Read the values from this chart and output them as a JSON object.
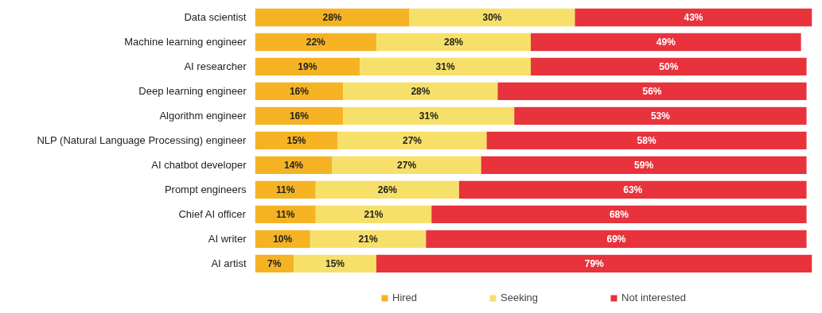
{
  "chart_data": {
    "type": "bar",
    "orientation": "horizontal",
    "stacked": true,
    "legend": "bottom",
    "categories": [
      "Data scientist",
      "Machine learning engineer",
      "AI researcher",
      "Deep learning engineer",
      "Algorithm engineer",
      "NLP (Natural Language Processing) engineer",
      "AI chatbot developer",
      "Prompt engineers",
      "Chief AI officer",
      "AI writer",
      "AI artist"
    ],
    "series": [
      {
        "name": "Hired",
        "color": "#f5b324",
        "values": [
          28,
          22,
          19,
          16,
          16,
          15,
          14,
          11,
          11,
          10,
          7
        ],
        "value_labels": [
          "28%",
          "22%",
          "19%",
          "16%",
          "16%",
          "15%",
          "14%",
          "11%",
          "11%",
          "10%",
          "7%"
        ]
      },
      {
        "name": "Seeking",
        "color": "#f7e06a",
        "values": [
          30,
          28,
          31,
          28,
          31,
          27,
          27,
          26,
          21,
          21,
          15
        ],
        "value_labels": [
          "30%",
          "28%",
          "31%",
          "28%",
          "31%",
          "27%",
          "27%",
          "26%",
          "21%",
          "21%",
          "15%"
        ]
      },
      {
        "name": "Not interested",
        "color": "#e8323c",
        "values": [
          43,
          49,
          50,
          56,
          53,
          58,
          59,
          63,
          68,
          69,
          79
        ],
        "value_labels": [
          "43%",
          "49%",
          "50%",
          "56%",
          "53%",
          "58%",
          "59%",
          "63%",
          "68%",
          "69%",
          "79%"
        ]
      }
    ]
  }
}
